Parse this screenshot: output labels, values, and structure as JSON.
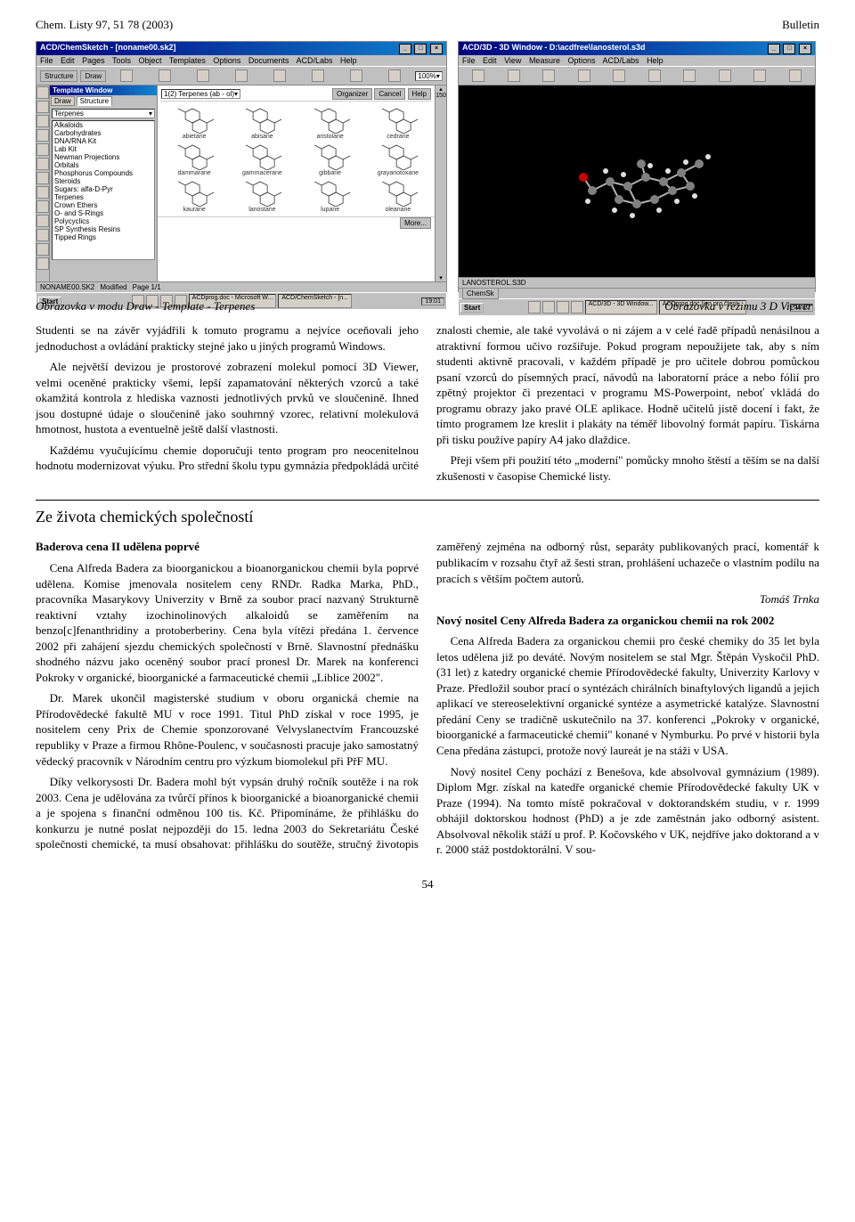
{
  "page": {
    "header_left": "Chem. Listy 97, 51 78 (2003)",
    "header_right": "Bulletin",
    "page_number": "54"
  },
  "left_app": {
    "title": "ACD/ChemSketch - [noname00.sk2]",
    "menu": [
      "File",
      "Edit",
      "Pages",
      "Tools",
      "Object",
      "Templates",
      "Options",
      "Documents",
      "ACD/Labs",
      "Help"
    ],
    "toolbar": {
      "btn_structure": "Structure",
      "btn_draw": "Draw",
      "zoom": "100%"
    },
    "template": {
      "title": "Template Window",
      "tab_draw": "Draw",
      "tab_structure": "Structure",
      "dd_cat": "Terpenes",
      "items": [
        "Alkaloids",
        "Carbohydrates",
        "DNA/RNA Kit",
        "Lab Kit",
        "Newman Projections",
        "Orbitals",
        "Phosphorus Compounds",
        "Steroids",
        "Sugars: alfa-D-Pyr",
        "Terpenes",
        "Crown Ethers",
        "O- and S-Rings",
        "Polycyclics",
        "SP Synthesis Resins",
        "Tipped Rings"
      ]
    },
    "canvas": {
      "header_left": "1(2) Terpenes (ab - ol)",
      "btn_organizer": "Organizer",
      "btn_cancel": "Cancel",
      "btn_help": "Help",
      "molecules": [
        "abietane",
        "abisane",
        "aristolane",
        "cedrane",
        "dammarane",
        "gammacerane",
        "gibbane",
        "grayanotoxane",
        "kaurane",
        "lanostane",
        "lupane",
        "oleanane"
      ],
      "more": "More..."
    },
    "scroll_max": "150",
    "status": {
      "file": "NONAME00.SK2",
      "mod": "Modified",
      "page": "Page 1/1"
    },
    "taskbar": {
      "start": "Start",
      "t1": "ACDprog.doc - Microsoft W...",
      "t2": "ACD/ChemSketch - [n...",
      "time": "19:01"
    }
  },
  "right_app": {
    "title": "ACD/3D - 3D Window - D:\\acdfree\\lanosterol.s3d",
    "menu": [
      "File",
      "Edit",
      "View",
      "Measure",
      "Options",
      "ACD/Labs",
      "Help"
    ],
    "status": "LANOSTEROL.S3D",
    "status2": "ChemSk",
    "taskbar": {
      "start": "Start",
      "t1": "ACD/3D - 3D Window...",
      "t2": "ACDprog.doc [jen pro čtení...",
      "time": "22:10"
    },
    "atom_color_c": "#808080",
    "atom_color_h": "#e0e0e0",
    "atom_color_o": "#cc0000",
    "bond_color": "#b0b0b0"
  },
  "captions": {
    "left": "Obrazovka v modu Draw - Template - Terpenes",
    "right": "Obrazovka v režimu 3 D Viewer"
  },
  "text_block1": {
    "p1": "Studenti se na závěr vyjádřili k tomuto programu a nejvíce oceňovali jeho jednoduchost a ovládání prakticky stejné jako u jiných programů Windows.",
    "p2": "Ale největší devizou je prostorové zobrazení molekul pomocí 3D Viewer, velmi oceněné prakticky všemi, lepší zapamatování některých vzorců a také okamžitá kontrola z hlediska vaznosti jednotlivých prvků ve sloučenině. Ihned jsou dostupné údaje o sloučenině jako souhrnný vzorec, relativní molekulová hmotnost, hustota a eventuelně ještě další vlastnosti.",
    "p3": "Každému vyučujícímu chemie doporučuji tento program pro neocenitelnou hodnotu modernizovat výuku. Pro střední školu typu gymnázia předpokládá určité znalosti chemie, ale také vyvolává o ni zájem a v celé řadě případů nenásilnou a atraktivní formou učivo rozšiřuje. Pokud program nepoužijete tak, aby s ním studenti aktivně pracovali, v každém případě je pro učitele dobrou pomůckou psaní vzorců do písemných prací, návodů na laboratorní práce a nebo fólií pro zpětný projektor či prezentaci v programu MS-Powerpoint, neboť vkládá do programu obrazy jako pravé OLE aplikace. Hodně učitelů jistě docení i fakt, že tímto programem lze kreslit i plakáty na téměř libovolný formát papíru. Tiskárna při tisku používe papíry A4 jako dlaždice.",
    "p4": "Přeji všem při použití této „moderní\" pomůcky mnoho štěstí a těším se na další zkušenosti v časopise Chemické listy."
  },
  "section_heading": "Ze života chemických společností",
  "text_block2": {
    "h1": "Baderova cena II udělena poprvé",
    "p1": "Cena Alfreda Badera za bioorganickou a bioanorganickou chemii byla poprvé udělena. Komise jmenovala nositelem ceny RNDr. Radka Marka, PhD., pracovníka Masarykovy Univerzity v Brně za soubor prací nazvaný Strukturně reaktivní vztahy izochinolinových alkaloidů se zaměřením na benzo[c]fenanthridiny a protoberberiny. Cena byla vítězi předána 1. července 2002 při zahájení sjezdu chemických společností v Brně. Slavnostní přednášku shodného názvu jako oceněný soubor prací pronesl Dr. Marek na konferenci Pokroky v organické, bioorganické a farmaceutické chemii „Liblice 2002\".",
    "p2": "Dr. Marek ukončil magisterské studium v oboru organická chemie na Přírodovědecké fakultě MU v roce 1991. Titul PhD získal v roce 1995, je nositelem ceny Prix de Chemie sponzorované Velvyslanectvím Francouzské republiky v Praze a firmou Rhône-Poulenc, v současnosti pracuje jako samostatný vědecký pracovník v Národním centru pro výzkum biomolekul při PřF MU.",
    "p3": "Díky velkorysosti Dr. Badera mohl být vypsán druhý ročník soutěže i na rok 2003. Cena je udělována za tvůrčí přínos k bioorganické a bioanorganické chemii a je spojena s finanční odměnou 100 tis. Kč. Připomínáme, že přihlášku do konkurzu je nutné poslat nejpozději do 15. ledna 2003 do Sekretariátu České společnosti chemické, ta musí obsahovat: přihlášku do soutěže, stručný životopis zaměřený zejména na odborný růst, separáty publikovaných prací, komentář k publikacím v rozsahu čtyř až šesti stran, prohlášení uchazeče o vlastním podílu na pracích s větším počtem autorů.",
    "sig": "Tomáš Trnka",
    "h2": "Nový nositel Ceny Alfreda Badera za organickou chemii na rok 2002",
    "p4": "Cena Alfreda Badera za organickou chemii pro české chemiky do 35 let byla letos udělena již po deváté. Novým nositelem se stal Mgr. Štěpán Vyskočil PhD. (31 let) z katedry organické chemie Přírodovědecké fakulty, Univerzity Karlovy v Praze. Předložil soubor prací o syntézách chirálních binaftylových ligandů a jejich aplikací ve stereoselektivní organické syntéze a asymetrické katalýze. Slavnostní předání Ceny se tradičně uskutečnilo na 37. konferenci „Pokroky v organické, bioorganické a farmaceutické chemii\" konané v Nymburku. Po prvé v historii byla Cena předána zástupci, protože nový laureát je na stáži v USA.",
    "p5": "Nový nositel Ceny pochází z Benešova, kde absolvoval gymnázium (1989). Diplom Mgr. získal na katedře organické chemie Přírodovědecké fakulty UK v Praze (1994). Na tomto místě pokračoval v doktorandském studiu, v r. 1999 obhájil doktorskou hodnost (PhD) a je zde zaměstnán jako odborný asistent. Absolvoval několik stáží u prof. P. Kočovského v UK, nejdříve jako doktorand a v r. 2000 stáž postdoktorální. V sou-"
  }
}
